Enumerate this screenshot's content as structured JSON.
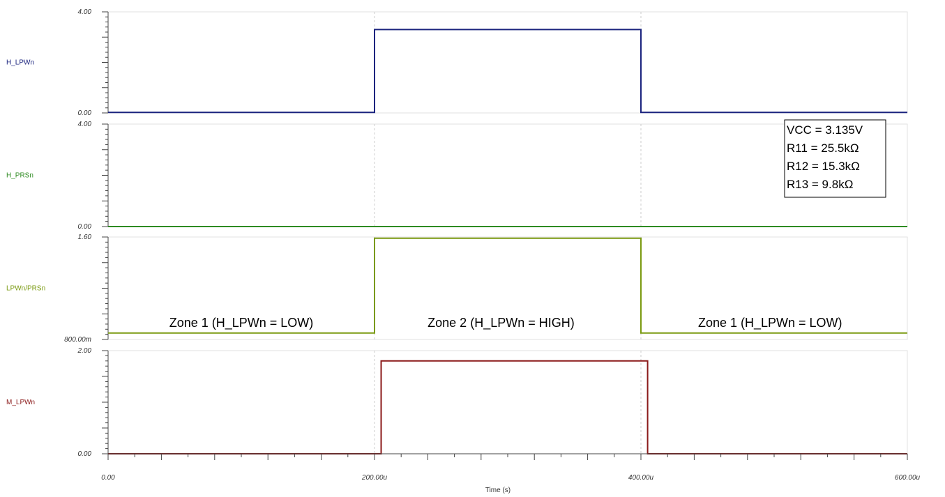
{
  "chart_data": {
    "type": "line",
    "xlabel": "Time (s)",
    "x_ticks": [
      "0.00",
      "200.00u",
      "400.00u",
      "600.00u"
    ],
    "x_range": [
      0,
      600
    ],
    "x_unit": "µs",
    "grid": "vertical dashed at 200u and 400u",
    "panels": [
      {
        "name": "H_LPWn",
        "color": "#1a237e",
        "ylim": [
          0,
          4
        ],
        "ytick_labels": [
          "4.00",
          "0.00"
        ],
        "points": [
          [
            0,
            0.02
          ],
          [
            200,
            0.02
          ],
          [
            200,
            3.3
          ],
          [
            400,
            3.3
          ],
          [
            400,
            0.02
          ],
          [
            600,
            0.02
          ]
        ]
      },
      {
        "name": "H_PRSn",
        "color": "#2e8b22",
        "ylim": [
          0,
          4
        ],
        "ytick_labels": [
          "4.00",
          "0.00"
        ],
        "points": [
          [
            0,
            0.0
          ],
          [
            600,
            0.0
          ]
        ]
      },
      {
        "name": "LPWn/PRSn",
        "color": "#7a9a10",
        "ylim": [
          0.8,
          1.6
        ],
        "ytick_labels": [
          "1.60",
          "800.00m"
        ],
        "points": [
          [
            0,
            0.85
          ],
          [
            200,
            0.85
          ],
          [
            200,
            1.59
          ],
          [
            400,
            1.59
          ],
          [
            400,
            0.85
          ],
          [
            600,
            0.85
          ]
        ]
      },
      {
        "name": "M_LPWn",
        "color": "#8b1a1a",
        "ylim": [
          0,
          2
        ],
        "ytick_labels": [
          "2.00",
          "0.00"
        ],
        "points": [
          [
            0,
            0.0
          ],
          [
            205,
            0.0
          ],
          [
            205,
            1.8
          ],
          [
            405,
            1.8
          ],
          [
            405,
            0.0
          ],
          [
            600,
            0.0
          ]
        ]
      }
    ],
    "annotations": {
      "zones": [
        {
          "text": "Zone 1 (H_LPWn = LOW)",
          "x": 100
        },
        {
          "text": "Zone 2 (H_LPWn = HIGH)",
          "x": 295
        },
        {
          "text": "Zone 1 (H_LPWn = LOW)",
          "x": 497
        }
      ],
      "note": [
        "VCC = 3.135V",
        "R11 = 25.5kΩ",
        "R12 = 15.3kΩ",
        "R13 = 9.8kΩ"
      ]
    }
  }
}
